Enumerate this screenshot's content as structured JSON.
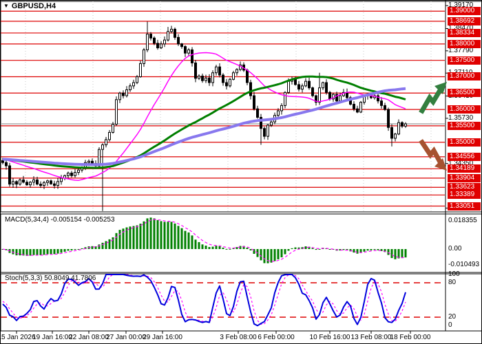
{
  "window": {
    "title": "GBPUSD,H4"
  },
  "chart_data": {
    "type": "candlestick",
    "symbol": "GBPUSD",
    "timeframe": "H4",
    "title": "GBPUSD,H4",
    "ylim": [
      1.3284,
      1.3932
    ],
    "x_tick_labels": [
      "15 Jan 2026",
      "19 Jan 16:00",
      "22 Jan 08:00",
      "27 Jan 00:00",
      "29 Jan 16:00",
      "3 Feb 08:00",
      "6 Feb 00:00",
      "10 Feb 16:00",
      "13 Feb 08:00",
      "18 Feb 00:00"
    ],
    "x_tick_pos": [
      23,
      75,
      128,
      182,
      235,
      345,
      400,
      478,
      538,
      595
    ],
    "y_tick_labels": [
      "1.39170",
      "1.38470",
      "1.37790",
      "1.37110",
      "1.36410",
      "1.35730",
      "1.34350",
      "1.32990"
    ],
    "y_tick_values": [
      1.3917,
      1.3847,
      1.3779,
      1.3711,
      1.3641,
      1.3573,
      1.3435,
      1.3299
    ],
    "level_values": [
      1.39,
      1.38692,
      1.38334,
      1.38,
      1.375,
      1.37,
      1.365,
      1.36,
      1.355,
      1.35,
      1.34556,
      1.34189,
      1.33904,
      1.33623,
      1.33389,
      1.33051
    ],
    "level_labels": [
      "1.39000",
      "1.38692",
      "1.38334",
      "1.38000",
      "1.37500",
      "1.37000",
      "1.36500",
      "1.36000",
      "1.35500",
      "1.35000",
      "1.34556",
      "1.34189",
      "1.33904",
      "1.33623",
      "1.33389",
      "1.33051"
    ],
    "current_price": 1.3556,
    "week_separators_x": [
      36,
      134,
      232,
      330,
      429,
      527,
      625
    ],
    "candles_close": [
      1.3438,
      1.3428,
      1.3372,
      1.338,
      1.3372,
      1.3385,
      1.3378,
      1.337,
      1.3378,
      1.3385,
      1.3372,
      1.3368,
      1.3377,
      1.3382,
      1.3373,
      1.3368,
      1.338,
      1.339,
      1.3398,
      1.3406,
      1.3398,
      1.3408,
      1.3415,
      1.3422,
      1.3438,
      1.3442,
      1.3435,
      1.3428,
      1.3478,
      1.3492,
      1.3508,
      1.353,
      1.3555,
      1.363,
      1.365,
      1.3642,
      1.366,
      1.3672,
      1.3682,
      1.37,
      1.374,
      1.3782,
      1.383,
      1.3818,
      1.3802,
      1.3788,
      1.38,
      1.3812,
      1.3838,
      1.3845,
      1.382,
      1.38,
      1.3792,
      1.3772,
      1.3782,
      1.3742,
      1.3695,
      1.3702,
      1.3688,
      1.3696,
      1.3682,
      1.3712,
      1.373,
      1.3705,
      1.3682,
      1.3672,
      1.3692,
      1.3712,
      1.3722,
      1.3736,
      1.372,
      1.3682,
      1.3642,
      1.3602,
      1.3576,
      1.3542,
      1.3518,
      1.3552,
      1.3562,
      1.3582,
      1.3596,
      1.3612,
      1.3652,
      1.3686,
      1.3692,
      1.3676,
      1.3662,
      1.3672,
      1.3686,
      1.3666,
      1.3642,
      1.3622,
      1.3666,
      1.3682,
      1.3652,
      1.3632,
      1.3646,
      1.3626,
      1.3642,
      1.3652,
      1.3636,
      1.3616,
      1.3602,
      1.3592,
      1.3622,
      1.3642,
      1.3646,
      1.3636,
      1.3642,
      1.3626,
      1.3612,
      1.36,
      1.3545,
      1.3512,
      1.3525,
      1.356,
      1.3549,
      1.3556
    ],
    "special_wicks": {
      "29": {
        "low": 1.329
      },
      "42": {
        "high": 1.3868
      },
      "48": {
        "high": 1.3852
      },
      "75": {
        "low": 1.3492
      },
      "92": {
        "high": 1.3712
      },
      "113": {
        "low": 1.3487
      }
    },
    "moving_averages": [
      {
        "name": "ma-fast",
        "period": 21,
        "color_key": "ma_magenta",
        "width": 1.5
      },
      {
        "name": "ma-mid",
        "period": 55,
        "color_key": "ma_green",
        "width": 3
      },
      {
        "name": "ma-slow",
        "period": 89,
        "color_key": "ma_purple",
        "width": 4
      }
    ],
    "indicators": {
      "macd": {
        "label": "MACD(5,34,4) -0.005154 -0.005253",
        "fast": 5,
        "slow": 34,
        "smooth": 4,
        "value": "-0.005154",
        "signal_value": "-0.005253",
        "axis_labels": [
          "0.018355",
          "0.00",
          "-0.010493"
        ],
        "axis_values": [
          0.018355,
          0,
          -0.010493
        ]
      },
      "stochastic": {
        "label": "Stoch(5,3,3) 50.8049 41.7806",
        "k": 5,
        "d": 3,
        "slowing": 3,
        "value": "50.8049",
        "signal_value": "41.7806",
        "axis_labels": [
          "100",
          "80",
          "20",
          "0"
        ],
        "axis_values": [
          100,
          80,
          20,
          0
        ],
        "levels": [
          80,
          20
        ]
      }
    },
    "annotations": [
      {
        "type": "arrow-up-trend"
      },
      {
        "type": "arrow-down-trend"
      }
    ]
  },
  "colors": {
    "level_red": "#dd0000",
    "badge_red": "#e00000",
    "ma_green": "#007f00",
    "ma_purple": "#8878ee",
    "ma_magenta": "#ff00ff",
    "macd_bar": "#008000",
    "macd_signal": "#ff00ff",
    "stoch_main": "#0000dd",
    "stoch_signal": "#ff00ff",
    "stoch_level": "#dd0000",
    "bid_line": "#a0a0a0",
    "arrow_up": "#337f3f",
    "arrow_down": "#a65230",
    "candle_up": "#ffffff",
    "candle_down": "#000000",
    "separator": "#c8c8c8"
  }
}
